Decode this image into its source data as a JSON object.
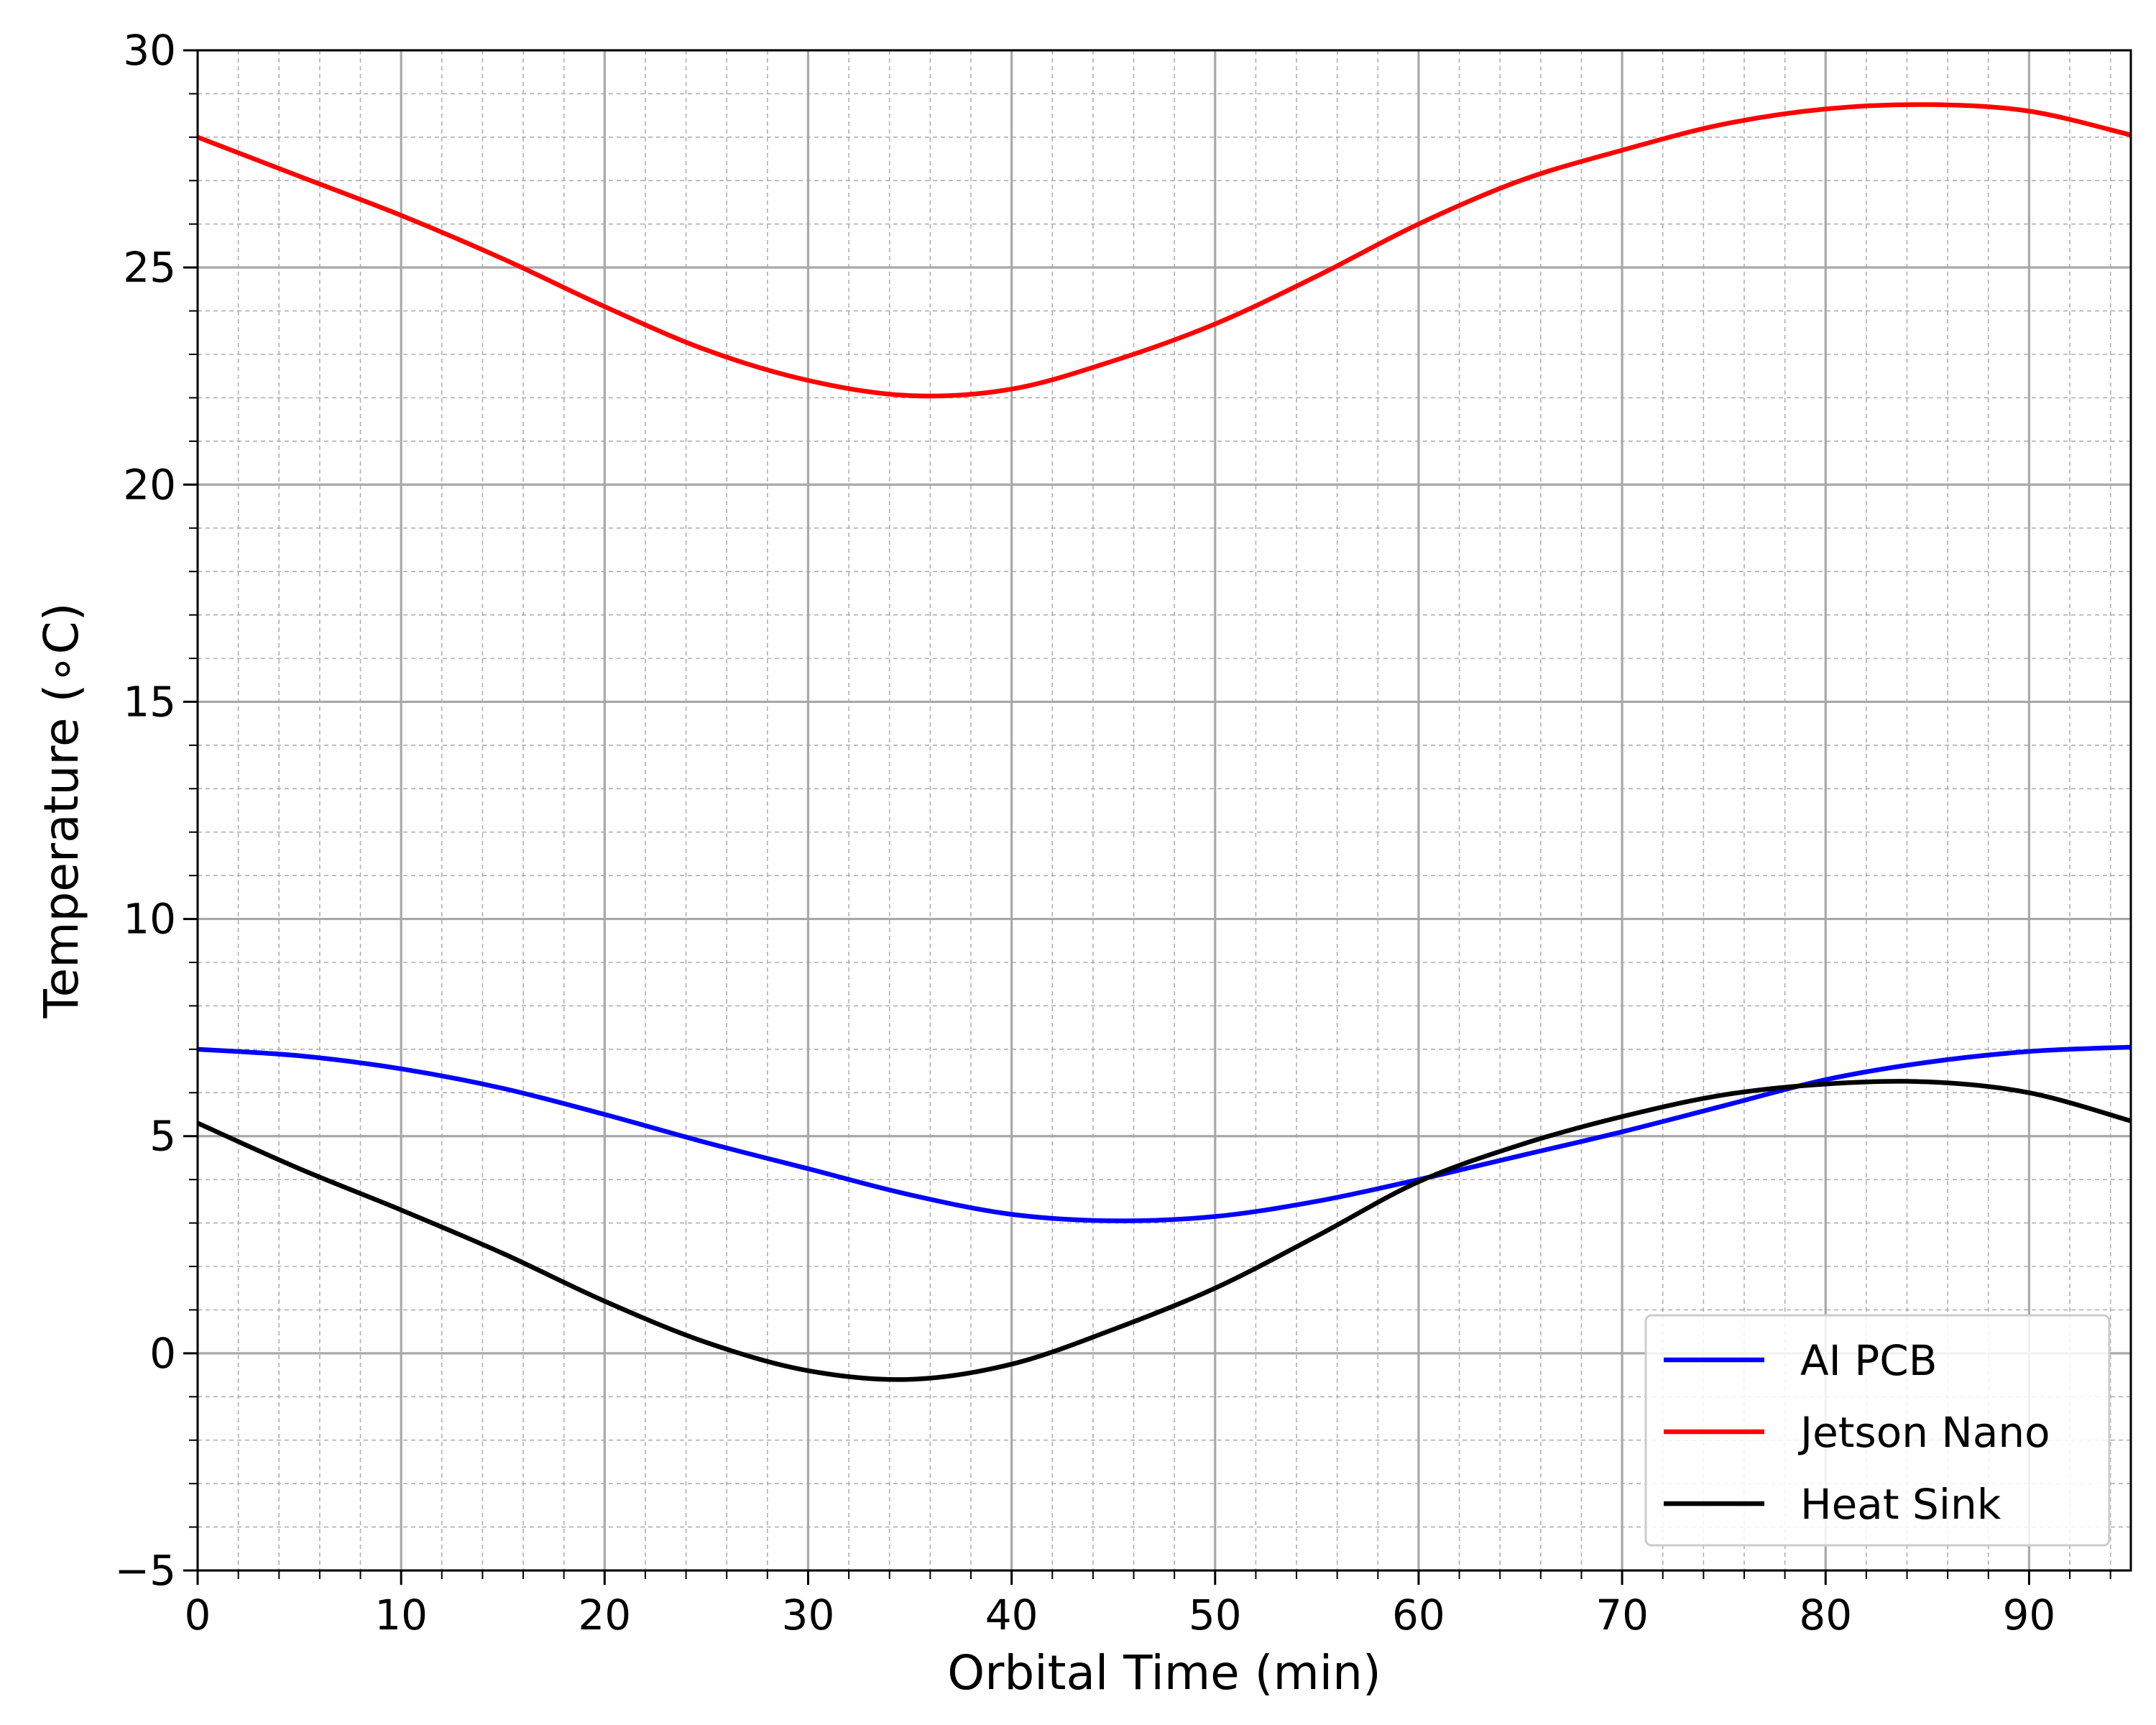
{
  "chart_data": {
    "type": "line",
    "xlabel": "Orbital Time (min)",
    "ylabel": "Temperature (∘C)",
    "xlim": [
      0,
      95
    ],
    "ylim": [
      -5,
      30
    ],
    "xticks": [
      0,
      10,
      20,
      30,
      40,
      50,
      60,
      70,
      80,
      90
    ],
    "xtick_labels": [
      "0",
      "10",
      "20",
      "30",
      "40",
      "50",
      "60",
      "70",
      "80",
      "90"
    ],
    "yticks": [
      -5,
      0,
      5,
      10,
      15,
      20,
      25,
      30
    ],
    "ytick_labels": [
      "−5",
      "0",
      "5",
      "10",
      "15",
      "20",
      "25",
      "30"
    ],
    "grid": "major and minor",
    "legend_position": "lower right",
    "series": [
      {
        "name": "AI PCB",
        "color": "#0000ff",
        "x": [
          0,
          5,
          10,
          15,
          20,
          25,
          30,
          35,
          40,
          45,
          50,
          55,
          60,
          65,
          70,
          75,
          80,
          85,
          90,
          95
        ],
        "y": [
          7.0,
          6.85,
          6.55,
          6.1,
          5.5,
          4.85,
          4.25,
          3.65,
          3.2,
          3.05,
          3.15,
          3.5,
          4.0,
          4.55,
          5.1,
          5.7,
          6.3,
          6.7,
          6.95,
          7.05
        ]
      },
      {
        "name": "Jetson Nano",
        "color": "#ff0000",
        "x": [
          0,
          5,
          10,
          15,
          20,
          25,
          30,
          35,
          40,
          45,
          50,
          55,
          60,
          65,
          70,
          75,
          80,
          85,
          90,
          95
        ],
        "y": [
          28.0,
          27.1,
          26.2,
          25.2,
          24.1,
          23.1,
          22.4,
          22.05,
          22.2,
          22.85,
          23.7,
          24.8,
          26.0,
          27.0,
          27.7,
          28.3,
          28.65,
          28.75,
          28.6,
          28.05
        ]
      },
      {
        "name": "Heat Sink",
        "color": "#000000",
        "x": [
          0,
          5,
          10,
          15,
          20,
          25,
          30,
          35,
          40,
          45,
          50,
          55,
          60,
          65,
          70,
          75,
          80,
          85,
          90,
          95
        ],
        "y": [
          5.3,
          4.25,
          3.3,
          2.3,
          1.2,
          0.25,
          -0.4,
          -0.6,
          -0.25,
          0.55,
          1.5,
          2.7,
          3.95,
          4.8,
          5.45,
          5.95,
          6.2,
          6.25,
          6.0,
          5.35
        ]
      }
    ]
  }
}
